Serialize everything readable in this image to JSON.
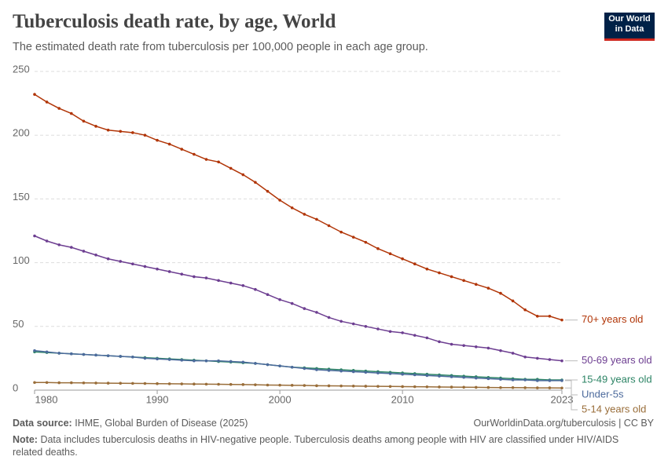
{
  "header": {
    "title": "Tuberculosis death rate, by age, World",
    "subtitle": "The estimated death rate from tuberculosis per 100,000 people in each age group.",
    "logo_line1": "Our World",
    "logo_line2": "in Data"
  },
  "footer": {
    "source_label": "Data source:",
    "source": "IHME, Global Burden of Disease (2025)",
    "url": "OurWorldinData.org/tuberculosis | CC BY",
    "note_label": "Note:",
    "note": "Data includes tuberculosis deaths in HIV-negative people. Tuberculosis deaths among people with HIV are classified under HIV/AIDS related deaths."
  },
  "chart_data": {
    "type": "line",
    "x": [
      1980,
      1981,
      1982,
      1983,
      1984,
      1985,
      1986,
      1987,
      1988,
      1989,
      1990,
      1991,
      1992,
      1993,
      1994,
      1995,
      1996,
      1997,
      1998,
      1999,
      2000,
      2001,
      2002,
      2003,
      2004,
      2005,
      2006,
      2007,
      2008,
      2009,
      2010,
      2011,
      2012,
      2013,
      2014,
      2015,
      2016,
      2017,
      2018,
      2019,
      2020,
      2021,
      2022,
      2023
    ],
    "xlim": [
      1980,
      2023
    ],
    "xticks": [
      1980,
      1990,
      2000,
      2010,
      2023
    ],
    "ylim": [
      0,
      250
    ],
    "yticks": [
      0,
      50,
      100,
      150,
      200,
      250
    ],
    "grid": true,
    "series": [
      {
        "name": "70+ years old",
        "color": "#b13507",
        "values": [
          232,
          226,
          221,
          217,
          211,
          207,
          204,
          203,
          202,
          200,
          196,
          193,
          189,
          185,
          181,
          179,
          174,
          169,
          163,
          156,
          149,
          143,
          138,
          134,
          129,
          124,
          120,
          116,
          111,
          107,
          103,
          99,
          95,
          92,
          89,
          86,
          83,
          80,
          76,
          70,
          63,
          58,
          58,
          55
        ]
      },
      {
        "name": "50-69 years old",
        "color": "#6d3e91",
        "values": [
          121,
          117,
          114,
          112,
          109,
          106,
          103,
          101,
          99,
          97,
          95,
          93,
          91,
          89,
          88,
          86,
          84,
          82,
          79,
          75,
          71,
          68,
          64,
          61,
          57,
          54,
          52,
          50,
          48,
          46,
          45,
          43,
          41,
          38,
          36,
          35,
          34,
          33,
          31,
          29,
          26,
          25,
          24,
          23
        ]
      },
      {
        "name": "15-49 years old",
        "color": "#2c8465",
        "values": [
          30,
          29.5,
          29,
          28.5,
          28,
          27.5,
          27,
          26.5,
          26,
          25.5,
          25,
          24.5,
          24,
          23.5,
          23,
          22.5,
          22,
          21.5,
          21,
          20,
          19,
          18,
          17.5,
          17,
          16.5,
          16,
          15.5,
          15,
          14.5,
          14,
          13.5,
          13,
          12.5,
          12,
          11.5,
          11,
          10.5,
          10,
          9.5,
          9,
          8.5,
          8.5,
          8,
          8
        ]
      },
      {
        "name": "Under-5s",
        "color": "#4c6a9c",
        "values": [
          31,
          30,
          29,
          28.5,
          28,
          27.5,
          27,
          26.5,
          26,
          25,
          24.5,
          24,
          23.5,
          23,
          23,
          23,
          22.5,
          22,
          21,
          20,
          19,
          18,
          17,
          16,
          15.5,
          15,
          14.5,
          14,
          13.5,
          13,
          12.5,
          12,
          11.5,
          11,
          10.5,
          10,
          9.5,
          9,
          8.5,
          8,
          8,
          7.5,
          7.5,
          7.5
        ]
      },
      {
        "name": "5-14 years old",
        "color": "#996d39",
        "values": [
          6,
          6,
          5.8,
          5.8,
          5.7,
          5.6,
          5.5,
          5.4,
          5.3,
          5.2,
          5.1,
          5,
          4.9,
          4.8,
          4.7,
          4.6,
          4.5,
          4.4,
          4.2,
          4,
          3.9,
          3.8,
          3.7,
          3.5,
          3.4,
          3.3,
          3.2,
          3.1,
          3,
          2.9,
          2.8,
          2.7,
          2.6,
          2.5,
          2.4,
          2.3,
          2.2,
          2.1,
          2,
          2,
          1.9,
          1.8,
          1.8,
          1.7
        ]
      }
    ]
  }
}
